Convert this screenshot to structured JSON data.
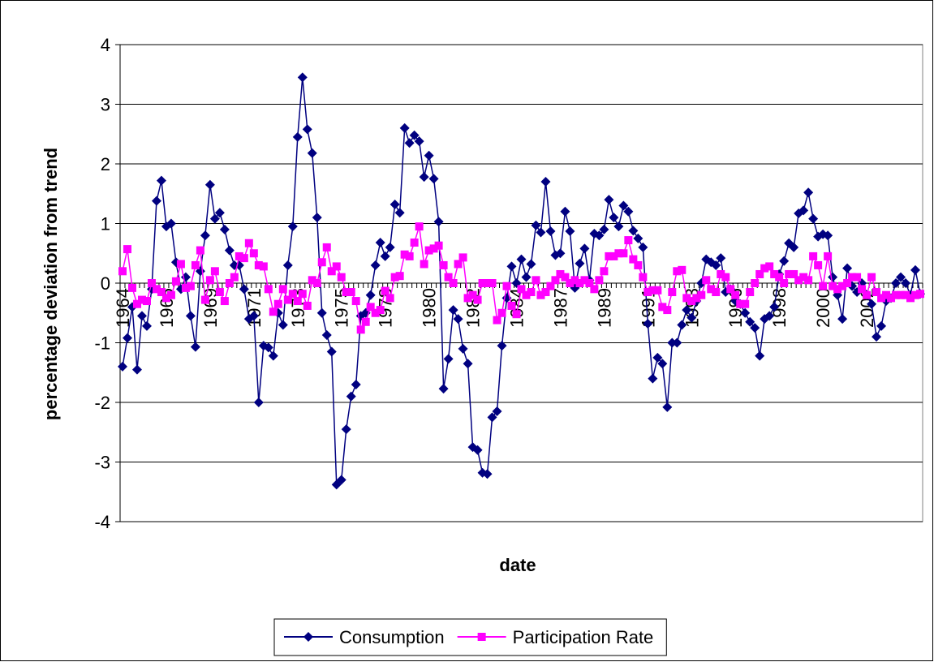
{
  "chart_data": {
    "type": "line",
    "x_label": "date",
    "y_label": "percentage deviation from trend",
    "categories": [
      "1964",
      null,
      null,
      null,
      null,
      null,
      null,
      null,
      null,
      "1966",
      null,
      null,
      null,
      null,
      null,
      null,
      null,
      null,
      "1969",
      null,
      null,
      null,
      null,
      null,
      null,
      null,
      null,
      "1971",
      null,
      null,
      null,
      null,
      null,
      null,
      null,
      null,
      "1973",
      null,
      null,
      null,
      null,
      null,
      null,
      null,
      null,
      "1975",
      null,
      null,
      null,
      null,
      null,
      null,
      null,
      null,
      "1978",
      null,
      null,
      null,
      null,
      null,
      null,
      null,
      null,
      "1980",
      null,
      null,
      null,
      null,
      null,
      null,
      null,
      null,
      "1982",
      null,
      null,
      null,
      null,
      null,
      null,
      null,
      null,
      "1984",
      null,
      null,
      null,
      null,
      null,
      null,
      null,
      null,
      "1987",
      null,
      null,
      null,
      null,
      null,
      null,
      null,
      null,
      "1989",
      null,
      null,
      null,
      null,
      null,
      null,
      null,
      null,
      "1991",
      null,
      null,
      null,
      null,
      null,
      null,
      null,
      null,
      "1993",
      null,
      null,
      null,
      null,
      null,
      null,
      null,
      null,
      "1996",
      null,
      null,
      null,
      null,
      null,
      null,
      null,
      null,
      "1998",
      null,
      null,
      null,
      null,
      null,
      null,
      null,
      null,
      "2000",
      null,
      null,
      null,
      null,
      null,
      null,
      null,
      null,
      "2002",
      null,
      null,
      null,
      null,
      null,
      null,
      null,
      null,
      null,
      null,
      null
    ],
    "series": [
      {
        "name": "Consumption",
        "color": "#000080",
        "marker": "diamond",
        "values": [
          -1.4,
          -0.92,
          -0.4,
          -1.45,
          -0.55,
          -0.72,
          -0.1,
          1.38,
          1.72,
          0.95,
          1.0,
          0.35,
          -0.1,
          0.1,
          -0.55,
          -1.07,
          0.2,
          0.8,
          1.65,
          1.08,
          1.18,
          0.9,
          0.55,
          0.3,
          0.3,
          -0.1,
          -0.6,
          -0.55,
          -2.0,
          -1.05,
          -1.08,
          -1.22,
          -0.5,
          -0.7,
          0.3,
          0.95,
          2.45,
          3.45,
          2.58,
          2.18,
          1.1,
          -0.5,
          -0.87,
          -1.15,
          -3.38,
          -3.3,
          -2.45,
          -1.9,
          -1.7,
          -0.55,
          -0.5,
          -0.2,
          0.3,
          0.68,
          0.45,
          0.6,
          1.32,
          1.18,
          2.6,
          2.35,
          2.48,
          2.38,
          1.78,
          2.14,
          1.75,
          1.03,
          -1.77,
          -1.27,
          -0.45,
          -0.6,
          -1.1,
          -1.35,
          -2.75,
          -2.8,
          -3.18,
          -3.2,
          -2.25,
          -2.15,
          -1.05,
          -0.25,
          0.28,
          0.0,
          0.4,
          0.1,
          0.32,
          0.97,
          0.85,
          1.7,
          0.87,
          0.47,
          0.5,
          1.2,
          0.87,
          -0.08,
          0.33,
          0.58,
          0.05,
          0.83,
          0.8,
          0.9,
          1.4,
          1.1,
          0.95,
          1.3,
          1.2,
          0.88,
          0.75,
          0.6,
          -0.68,
          -1.6,
          -1.25,
          -1.35,
          -2.08,
          -1.0,
          -1.0,
          -0.7,
          -0.45,
          -0.58,
          -0.3,
          0.0,
          0.4,
          0.35,
          0.3,
          0.42,
          -0.15,
          -0.1,
          -0.3,
          -0.35,
          -0.5,
          -0.65,
          -0.75,
          -1.22,
          -0.6,
          -0.55,
          -0.4,
          0.15,
          0.37,
          0.67,
          0.6,
          1.17,
          1.22,
          1.52,
          1.08,
          0.78,
          0.82,
          0.8,
          0.1,
          -0.2,
          -0.6,
          0.25,
          -0.05,
          -0.15,
          0.0,
          -0.2,
          -0.35,
          -0.9,
          -0.72,
          -0.3,
          -0.25,
          0.0,
          0.1,
          0.0,
          -0.2,
          0.22,
          -0.18
        ]
      },
      {
        "name": "Participation Rate",
        "color": "#ff00ff",
        "marker": "square",
        "values": [
          0.2,
          0.57,
          -0.08,
          -0.35,
          -0.28,
          -0.3,
          0.0,
          -0.1,
          -0.15,
          -0.25,
          -0.2,
          0.03,
          0.32,
          -0.08,
          -0.05,
          0.3,
          0.55,
          -0.28,
          0.05,
          0.2,
          -0.15,
          -0.3,
          0.0,
          0.1,
          0.45,
          0.42,
          0.67,
          0.5,
          0.3,
          0.28,
          -0.1,
          -0.48,
          -0.35,
          -0.1,
          -0.28,
          -0.18,
          -0.3,
          -0.18,
          -0.38,
          0.05,
          0.0,
          0.35,
          0.6,
          0.2,
          0.28,
          0.1,
          -0.15,
          -0.15,
          -0.3,
          -0.78,
          -0.65,
          -0.4,
          -0.5,
          -0.45,
          -0.13,
          -0.25,
          0.1,
          0.12,
          0.48,
          0.45,
          0.68,
          0.95,
          0.32,
          0.55,
          0.58,
          0.63,
          0.3,
          0.1,
          0.0,
          0.32,
          0.43,
          -0.25,
          -0.2,
          -0.28,
          0.0,
          0.0,
          0.0,
          -0.62,
          -0.5,
          -0.05,
          -0.38,
          -0.52,
          -0.1,
          -0.2,
          -0.15,
          0.05,
          -0.2,
          -0.15,
          -0.05,
          0.05,
          0.15,
          0.1,
          0.0,
          0.05,
          0.0,
          0.05,
          0.0,
          -0.1,
          0.05,
          0.2,
          0.45,
          0.45,
          0.5,
          0.5,
          0.72,
          0.4,
          0.3,
          0.1,
          -0.15,
          -0.12,
          -0.12,
          -0.4,
          -0.45,
          -0.15,
          0.2,
          0.22,
          -0.25,
          -0.3,
          -0.25,
          -0.2,
          0.05,
          -0.1,
          -0.15,
          0.15,
          0.1,
          -0.1,
          -0.2,
          -0.35,
          -0.35,
          -0.15,
          0.0,
          0.15,
          0.25,
          0.28,
          0.15,
          0.1,
          0.0,
          0.15,
          0.15,
          0.05,
          0.1,
          0.05,
          0.45,
          0.3,
          -0.05,
          0.45,
          -0.05,
          -0.1,
          -0.05,
          0.0,
          0.1,
          0.1,
          -0.1,
          -0.2,
          0.1,
          -0.15,
          -0.25,
          -0.2,
          -0.25,
          -0.2,
          -0.2,
          -0.2,
          -0.25,
          -0.2,
          -0.18
        ]
      }
    ],
    "ylim": [
      -4,
      4
    ],
    "yticks": [
      -4,
      -3,
      -2,
      -1,
      0,
      1,
      2,
      3,
      4
    ],
    "grid": true,
    "legend": "bottom"
  }
}
